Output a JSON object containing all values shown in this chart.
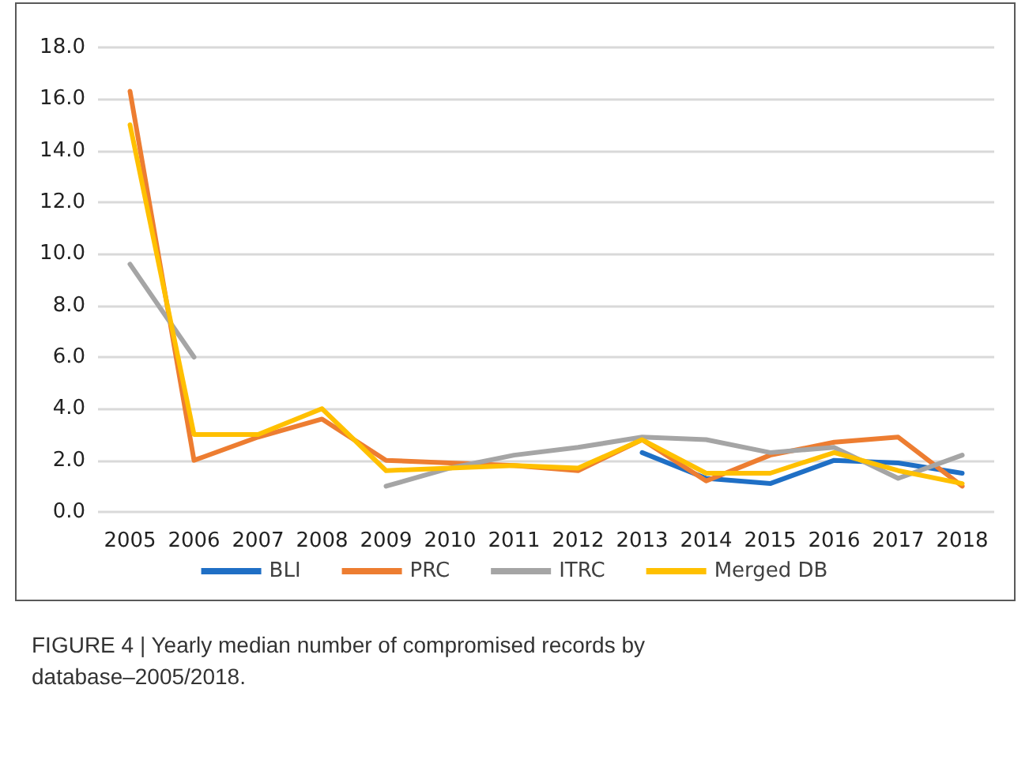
{
  "chart_data": {
    "type": "line",
    "categories": [
      "2005",
      "2006",
      "2007",
      "2008",
      "2009",
      "2010",
      "2011",
      "2012",
      "2013",
      "2014",
      "2015",
      "2016",
      "2017",
      "2018"
    ],
    "series": [
      {
        "name": "BLI",
        "color": "#1f6fc5",
        "values": [
          null,
          null,
          null,
          null,
          null,
          null,
          null,
          null,
          2.3,
          1.3,
          1.1,
          2.0,
          1.9,
          1.5
        ]
      },
      {
        "name": "PRC",
        "color": "#ed7d31",
        "values": [
          16.3,
          2.0,
          2.9,
          3.6,
          2.0,
          1.9,
          1.8,
          1.6,
          2.8,
          1.2,
          2.2,
          2.7,
          2.9,
          1.0
        ]
      },
      {
        "name": "ITRC",
        "color": "#a5a5a5",
        "values": [
          9.6,
          6.0,
          null,
          null,
          1.0,
          1.7,
          2.2,
          2.5,
          2.9,
          2.8,
          2.3,
          2.5,
          1.3,
          2.2
        ]
      },
      {
        "name": "Merged DB",
        "color": "#ffc000",
        "values": [
          15.0,
          3.0,
          3.0,
          4.0,
          1.6,
          1.7,
          1.8,
          1.7,
          2.8,
          1.5,
          1.5,
          2.3,
          1.6,
          1.1
        ]
      }
    ],
    "ylim": [
      0,
      18
    ],
    "yticks": [
      {
        "value": 0,
        "label": "0.0"
      },
      {
        "value": 2,
        "label": "2.0"
      },
      {
        "value": 4,
        "label": "4.0"
      },
      {
        "value": 6,
        "label": "6.0"
      },
      {
        "value": 8,
        "label": "8.0"
      },
      {
        "value": 10,
        "label": "10.0"
      },
      {
        "value": 12,
        "label": "12.0"
      },
      {
        "value": 14,
        "label": "14.0"
      },
      {
        "value": 16,
        "label": "16.0"
      },
      {
        "value": 18,
        "label": "18.0"
      }
    ],
    "grid": "y",
    "legend": "bottom",
    "marker": "none",
    "line_style": "solid",
    "annotations": [
      "FIGURE 4 | Yearly median number of compromised records by database–2005/2018."
    ]
  }
}
